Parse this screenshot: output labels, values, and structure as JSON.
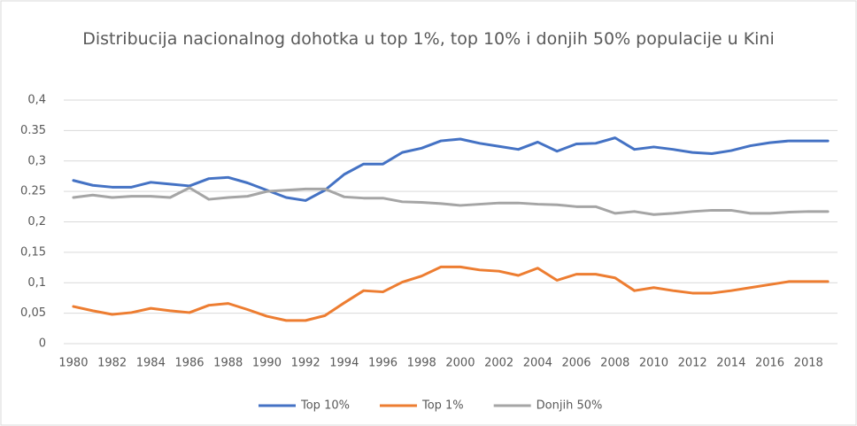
{
  "chart_data": {
    "type": "line",
    "title": "Distribucija nacionalnog dohotka u top 1%, top 10% i donjih 50% populacije u Kini",
    "categories": [
      "1980",
      null,
      "1982",
      null,
      "1984",
      null,
      "1986",
      null,
      "1988",
      null,
      "1990",
      null,
      "1992",
      null,
      "1994",
      null,
      "1996",
      null,
      "1998",
      null,
      "2000",
      null,
      "2002",
      null,
      "2004",
      null,
      "2006",
      null,
      "2008",
      null,
      "2010",
      null,
      "2012",
      null,
      "2014",
      null,
      "2016",
      null,
      "2018",
      null
    ],
    "series": [
      {
        "name": "Top 10%",
        "color": "#4472c4",
        "values": [
          0.268,
          0.26,
          0.257,
          0.257,
          0.265,
          0.262,
          0.259,
          0.271,
          0.273,
          0.264,
          0.252,
          0.24,
          0.235,
          0.252,
          0.278,
          0.295,
          0.295,
          0.314,
          0.321,
          0.333,
          0.336,
          0.329,
          0.324,
          0.319,
          0.331,
          0.316,
          0.328,
          0.329,
          0.338,
          0.319,
          0.323,
          0.319,
          0.314,
          0.312,
          0.317,
          0.325,
          0.33,
          0.333,
          0.333,
          0.333
        ]
      },
      {
        "name": "Top 1%",
        "color": "#ed7d31",
        "values": [
          0.061,
          0.054,
          0.048,
          0.051,
          0.058,
          0.054,
          0.051,
          0.063,
          0.066,
          0.056,
          0.045,
          0.038,
          0.038,
          0.046,
          0.067,
          0.087,
          0.085,
          0.101,
          0.111,
          0.126,
          0.126,
          0.121,
          0.119,
          0.112,
          0.124,
          0.104,
          0.114,
          0.114,
          0.108,
          0.087,
          0.092,
          0.087,
          0.083,
          0.083,
          0.087,
          0.092,
          0.097,
          0.102,
          0.102,
          0.102
        ]
      },
      {
        "name": "Donjih 50%",
        "color": "#a5a5a5",
        "values": [
          0.24,
          0.244,
          0.24,
          0.242,
          0.242,
          0.24,
          0.256,
          0.237,
          0.24,
          0.242,
          0.25,
          0.252,
          0.254,
          0.254,
          0.241,
          0.239,
          0.239,
          0.233,
          0.232,
          0.23,
          0.227,
          0.229,
          0.231,
          0.231,
          0.229,
          0.228,
          0.225,
          0.225,
          0.214,
          0.217,
          0.212,
          0.214,
          0.217,
          0.219,
          0.219,
          0.214,
          0.214,
          0.216,
          0.217,
          0.217
        ]
      }
    ],
    "ylim": [
      0,
      0.4
    ],
    "yticks": [
      0,
      {
        "value": 0.05,
        "label": "0,05"
      },
      {
        "value": 0.1,
        "label": "0,1"
      },
      {
        "value": 0.15,
        "label": "0,15"
      },
      {
        "value": 0.2,
        "label": "0,2"
      },
      {
        "value": 0.25,
        "label": "0.25"
      },
      {
        "value": 0.3,
        "label": "0,3"
      },
      {
        "value": 0.35,
        "label": "0.35"
      },
      {
        "value": 0.4,
        "label": "0,4"
      }
    ],
    "grid": true,
    "legend": "bottom"
  }
}
